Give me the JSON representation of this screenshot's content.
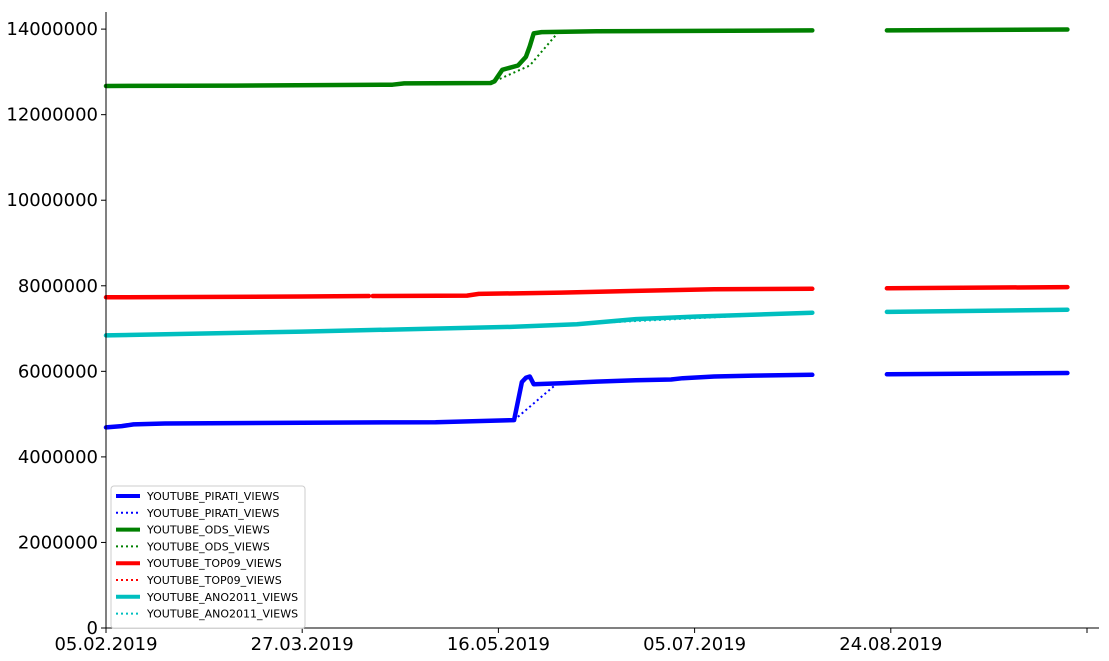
{
  "chart_data": {
    "type": "line",
    "title": "",
    "xlabel": "",
    "ylabel": "",
    "x_type": "date",
    "xlim": [
      "2019-02-05",
      "2019-10-13"
    ],
    "ylim": [
      0,
      14400000
    ],
    "x_ticks": [
      {
        "date": "2019-02-05",
        "label": "05.02.2019"
      },
      {
        "date": "2019-03-27",
        "label": "27.03.2019"
      },
      {
        "date": "2019-05-16",
        "label": "16.05.2019"
      },
      {
        "date": "2019-07-05",
        "label": "05.07.2019"
      },
      {
        "date": "2019-08-24",
        "label": "24.08.2019"
      },
      {
        "date": "2019-10-13",
        "label": ""
      }
    ],
    "y_ticks": [
      0,
      2000000,
      4000000,
      6000000,
      8000000,
      10000000,
      12000000,
      14000000
    ],
    "grid": false,
    "legend_position": "bottom-left",
    "series": [
      {
        "name": "YOUTUBE_PIRATI_VIEWS",
        "style": "solid",
        "color": "#0000ff",
        "points": [
          [
            "2019-02-05",
            4690000
          ],
          [
            "2019-02-09",
            4720000
          ],
          [
            "2019-02-12",
            4760000
          ],
          [
            "2019-02-20",
            4780000
          ],
          [
            "2019-03-27",
            4800000
          ],
          [
            "2019-04-30",
            4810000
          ],
          [
            "2019-05-20",
            4860000
          ],
          [
            "2019-05-22",
            5750000
          ],
          [
            "2019-05-23",
            5850000
          ],
          [
            "2019-05-24",
            5880000
          ],
          [
            "2019-05-25",
            5700000
          ],
          [
            "2019-06-01",
            5720000
          ],
          [
            "2019-06-10",
            5760000
          ],
          [
            "2019-06-20",
            5790000
          ],
          [
            "2019-06-29",
            5810000
          ],
          [
            "2019-07-02",
            5840000
          ],
          [
            "2019-07-10",
            5880000
          ],
          [
            "2019-07-20",
            5900000
          ],
          [
            "2019-08-04",
            5920000
          ],
          null,
          [
            "2019-08-23",
            5930000
          ],
          [
            "2019-10-08",
            5960000
          ]
        ]
      },
      {
        "name": "YOUTUBE_PIRATI_VIEWS",
        "style": "dotted",
        "color": "#0000ff",
        "points": [
          [
            "2019-05-20",
            4860000
          ],
          [
            "2019-05-31",
            5720000
          ]
        ]
      },
      {
        "name": "YOUTUBE_ODS_VIEWS",
        "style": "solid",
        "color": "#008000",
        "points": [
          [
            "2019-02-05",
            12670000
          ],
          [
            "2019-03-10",
            12680000
          ],
          [
            "2019-04-19",
            12700000
          ],
          [
            "2019-04-22",
            12730000
          ],
          [
            "2019-05-14",
            12740000
          ],
          [
            "2019-05-15",
            12780000
          ],
          [
            "2019-05-17",
            13050000
          ],
          [
            "2019-05-21",
            13150000
          ],
          [
            "2019-05-23",
            13350000
          ],
          [
            "2019-05-24",
            13600000
          ],
          [
            "2019-05-25",
            13900000
          ],
          [
            "2019-05-27",
            13930000
          ],
          [
            "2019-06-10",
            13950000
          ],
          [
            "2019-08-04",
            13970000
          ],
          null,
          [
            "2019-08-23",
            13970000
          ],
          [
            "2019-10-08",
            13990000
          ]
        ]
      },
      {
        "name": "YOUTUBE_ODS_VIEWS",
        "style": "dotted",
        "color": "#008000",
        "points": [
          [
            "2019-05-14",
            12740000
          ],
          [
            "2019-05-24",
            13150000
          ],
          [
            "2019-05-31",
            13900000
          ]
        ]
      },
      {
        "name": "YOUTUBE_TOP09_VIEWS",
        "style": "solid",
        "color": "#ff0000",
        "points": [
          [
            "2019-02-05",
            7730000
          ],
          [
            "2019-03-27",
            7750000
          ],
          [
            "2019-04-13",
            7760000
          ],
          null,
          [
            "2019-04-14",
            7760000
          ],
          [
            "2019-05-08",
            7770000
          ],
          [
            "2019-05-11",
            7810000
          ],
          [
            "2019-06-01",
            7840000
          ],
          [
            "2019-06-20",
            7880000
          ],
          [
            "2019-07-10",
            7920000
          ],
          [
            "2019-08-04",
            7930000
          ],
          null,
          [
            "2019-08-23",
            7940000
          ],
          [
            "2019-10-08",
            7970000
          ]
        ]
      },
      {
        "name": "YOUTUBE_TOP09_VIEWS",
        "style": "dotted",
        "color": "#ff0000",
        "points": [
          [
            "2019-04-12",
            7760000
          ],
          [
            "2019-04-15",
            7760000
          ]
        ]
      },
      {
        "name": "YOUTUBE_ANO2011_VIEWS",
        "style": "solid",
        "color": "#00bfbf",
        "points": [
          [
            "2019-02-05",
            6840000
          ],
          [
            "2019-03-27",
            6930000
          ],
          [
            "2019-05-20",
            7040000
          ],
          [
            "2019-06-05",
            7100000
          ],
          [
            "2019-06-20",
            7220000
          ],
          [
            "2019-07-05",
            7280000
          ],
          [
            "2019-08-04",
            7370000
          ],
          null,
          [
            "2019-08-23",
            7390000
          ],
          [
            "2019-10-08",
            7440000
          ]
        ]
      },
      {
        "name": "YOUTUBE_ANO2011_VIEWS",
        "style": "dotted",
        "color": "#00bfbf",
        "points": [
          [
            "2019-05-20",
            7040000
          ],
          [
            "2019-08-04",
            7370000
          ]
        ]
      }
    ]
  }
}
